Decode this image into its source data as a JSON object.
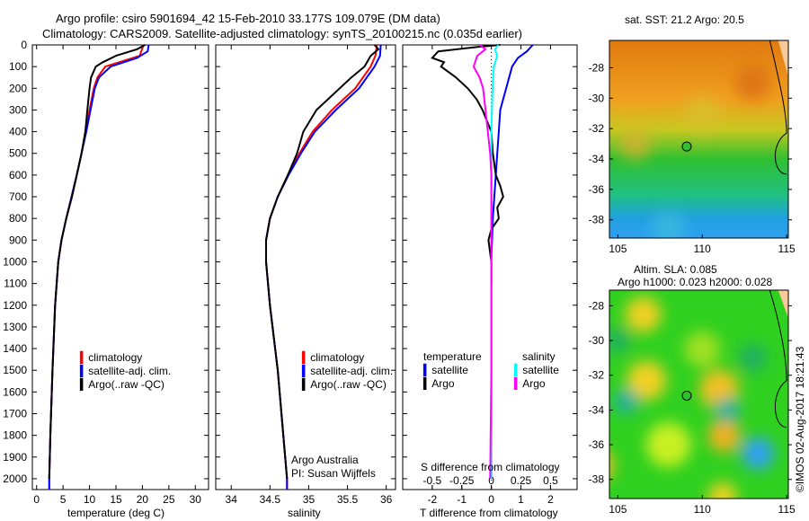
{
  "title_line1": "Argo profile: csiro 5901694_42 15-Feb-2010 33.177S 109.079E (DM data)",
  "title_line2": "Climatology: CARS2009. Satellite-adjusted climatology: synTS_20100215.nc (0.035d earlier)",
  "colors": {
    "climatology": "#ff0000",
    "satellite": "#0000ff",
    "argo": "#000000",
    "sal_satellite": "#00ffff",
    "sal_argo": "#ff00ff"
  },
  "chart_data": [
    {
      "type": "line",
      "name": "temperature",
      "xlabel": "temperature (deg C)",
      "ylabel": "",
      "xlim": [
        -0.8,
        32.5
      ],
      "ylim": [
        2050,
        0
      ],
      "xticks": [
        "0",
        "5",
        "10",
        "15",
        "20",
        "25",
        "30"
      ],
      "xtick_values": [
        0,
        5,
        10,
        15,
        20,
        25,
        30
      ],
      "yticks": [
        "0",
        "100",
        "200",
        "300",
        "400",
        "500",
        "600",
        "700",
        "800",
        "900",
        "1000",
        "1100",
        "1200",
        "1300",
        "1400",
        "1500",
        "1600",
        "1700",
        "1800",
        "1900",
        "2000"
      ],
      "legend": [
        "climatology",
        "satellite-adj. clim.",
        "Argo(..raw -QC)"
      ],
      "series": [
        {
          "name": "climatology",
          "color": "#ff0000",
          "depth": [
            0,
            50,
            100,
            150,
            200,
            300,
            400,
            500,
            600,
            700,
            800,
            900,
            1000,
            1200,
            1500,
            1800,
            2000,
            2050
          ],
          "values": [
            20.2,
            19.5,
            13,
            11.5,
            10.8,
            10,
            9.3,
            8.5,
            7.6,
            6.6,
            5.6,
            4.7,
            4.1,
            3.5,
            3,
            2.6,
            2.4,
            2.4
          ]
        },
        {
          "name": "satellite-adj. clim.",
          "color": "#0000ff",
          "depth": [
            0,
            30,
            60,
            100,
            150,
            200,
            300,
            400,
            500,
            600,
            700,
            800,
            900,
            1000,
            1200,
            1500,
            1800,
            2000,
            2050
          ],
          "values": [
            21.2,
            21,
            19,
            14,
            11.8,
            11,
            10.2,
            9.4,
            8.5,
            7.6,
            6.6,
            5.6,
            4.7,
            4.1,
            3.5,
            3,
            2.6,
            2.4,
            2.4
          ]
        },
        {
          "name": "Argo(..raw -QC)",
          "color": "#000000",
          "depth": [
            0,
            20,
            50,
            80,
            100,
            150,
            200,
            300,
            400,
            500,
            600,
            700,
            800,
            900,
            1000,
            1200,
            1500,
            1800,
            2000
          ],
          "values": [
            20.5,
            19,
            15,
            12.5,
            11.2,
            10.3,
            10,
            9.6,
            9.2,
            8.5,
            7.6,
            6.7,
            5.6,
            4.7,
            4.1,
            3.5,
            3,
            2.6,
            2.4
          ]
        }
      ],
      "annotation": [
        "Argo Australia",
        "PI: Susan Wijffels"
      ]
    },
    {
      "type": "line",
      "name": "salinity",
      "xlabel": "salinity",
      "xlim": [
        33.8,
        36.12
      ],
      "ylim": [
        2050,
        0
      ],
      "xticks": [
        "34",
        "34.5",
        "35",
        "35.5",
        "36"
      ],
      "xtick_values": [
        34,
        34.5,
        35,
        35.5,
        36
      ],
      "legend": [
        "climatology",
        "satellite-adj. clim.",
        "Argo(..raw -QC)"
      ],
      "series": [
        {
          "name": "climatology",
          "color": "#ff0000",
          "depth": [
            0,
            50,
            100,
            200,
            300,
            400,
            500,
            600,
            700,
            800,
            900,
            1000,
            1200,
            1500,
            2000,
            2050
          ],
          "values": [
            35.88,
            35.86,
            35.8,
            35.6,
            35.3,
            35.05,
            34.88,
            34.73,
            34.6,
            34.5,
            34.45,
            34.45,
            34.5,
            34.6,
            34.72,
            34.72
          ]
        },
        {
          "name": "satellite-adj. clim.",
          "color": "#0000ff",
          "depth": [
            0,
            50,
            100,
            200,
            300,
            400,
            500,
            600,
            700,
            800,
            900,
            1000,
            1200,
            1500,
            2000,
            2050
          ],
          "values": [
            35.93,
            35.92,
            35.85,
            35.65,
            35.35,
            35.08,
            34.9,
            34.74,
            34.6,
            34.5,
            34.45,
            34.45,
            34.5,
            34.6,
            34.72,
            34.72
          ]
        },
        {
          "name": "Argo(..raw -QC)",
          "color": "#000000",
          "depth": [
            0,
            20,
            50,
            100,
            150,
            200,
            250,
            300,
            400,
            500,
            600,
            700,
            800,
            900,
            1000,
            1200,
            1500,
            2000
          ],
          "values": [
            35.85,
            35.9,
            35.8,
            35.72,
            35.55,
            35.4,
            35.25,
            35.1,
            34.93,
            34.85,
            34.73,
            34.6,
            34.5,
            34.45,
            34.45,
            34.5,
            34.6,
            34.72
          ]
        }
      ]
    },
    {
      "type": "line",
      "name": "differences",
      "xlabel": "T difference from climatology",
      "x2label": "S difference from climatology",
      "xlim": [
        -3,
        2.9
      ],
      "ylim": [
        2050,
        0
      ],
      "xticks": [
        "-2",
        "-1",
        "0",
        "1",
        "2"
      ],
      "xtick_values": [
        -2,
        -1,
        0,
        1,
        2
      ],
      "x2ticks": [
        "-0.5",
        "-0.25",
        "0",
        "0.25",
        "0.5"
      ],
      "x2tick_values": [
        -0.5,
        -0.25,
        0,
        0.25,
        0.5
      ],
      "legend_temperature": {
        "title": "temperature",
        "items": [
          "satellite",
          "Argo"
        ]
      },
      "legend_salinity": {
        "title": "salinity",
        "items": [
          "satellite",
          "Argo"
        ]
      },
      "series": [
        {
          "name": "T satellite",
          "color": "#0000ff",
          "scale": "T",
          "depth": [
            0,
            30,
            60,
            100,
            150,
            200,
            300,
            400,
            500,
            600,
            700,
            800,
            1000,
            1500,
            2000
          ],
          "values": [
            1.4,
            1.2,
            0.9,
            0.7,
            0.6,
            0.5,
            0.3,
            0.25,
            0.2,
            0.15,
            0.1,
            0.05,
            0,
            0,
            0
          ]
        },
        {
          "name": "T Argo",
          "color": "#000000",
          "scale": "T",
          "depth": [
            0,
            10,
            30,
            60,
            80,
            100,
            150,
            200,
            250,
            300,
            400,
            500,
            600,
            650,
            700,
            750,
            800,
            850,
            900,
            1000,
            1100
          ],
          "values": [
            0.3,
            -0.5,
            -1.8,
            -2,
            -1.6,
            -1.7,
            -1.2,
            -0.8,
            -0.5,
            -0.3,
            0,
            0.05,
            0.15,
            0.3,
            0.4,
            0.2,
            0.25,
            0,
            -0.1,
            0,
            0
          ]
        },
        {
          "name": "S satellite",
          "color": "#00ffff",
          "scale": "S",
          "depth": [
            0,
            20,
            50,
            100,
            200,
            400,
            600,
            800,
            1000,
            1500,
            2000
          ],
          "values": [
            0.06,
            0.03,
            0.05,
            0.02,
            0.01,
            0,
            0,
            0,
            0,
            0,
            0
          ]
        },
        {
          "name": "S Argo",
          "color": "#ff00ff",
          "scale": "S",
          "depth": [
            0,
            20,
            50,
            100,
            150,
            200,
            300,
            400,
            500,
            600,
            800,
            1000,
            1500,
            2000
          ],
          "values": [
            -0.1,
            -0.05,
            -0.12,
            -0.15,
            -0.1,
            -0.07,
            -0.05,
            -0.03,
            -0.01,
            0,
            0,
            0,
            0,
            -0.01
          ]
        }
      ]
    }
  ],
  "map_sst": {
    "title": "sat. SST: 21.2 Argo: 20.5",
    "xticks": [
      "105",
      "110",
      "115"
    ],
    "yticks": [
      "-28",
      "-30",
      "-32",
      "-34",
      "-36",
      "-38"
    ],
    "argo_position": {
      "lon": 109.079,
      "lat": -33.177
    }
  },
  "map_sla": {
    "title1": "Altim. SLA: 0.085",
    "title2": "Argo h1000: 0.023 h2000: 0.028",
    "xticks": [
      "105",
      "110",
      "115"
    ],
    "yticks": [
      "-28",
      "-30",
      "-32",
      "-34",
      "-36",
      "-38"
    ],
    "argo_position": {
      "lon": 109.079,
      "lat": -33.177
    }
  },
  "credit": "©IMOS 02-Aug-2017 18:21:43"
}
